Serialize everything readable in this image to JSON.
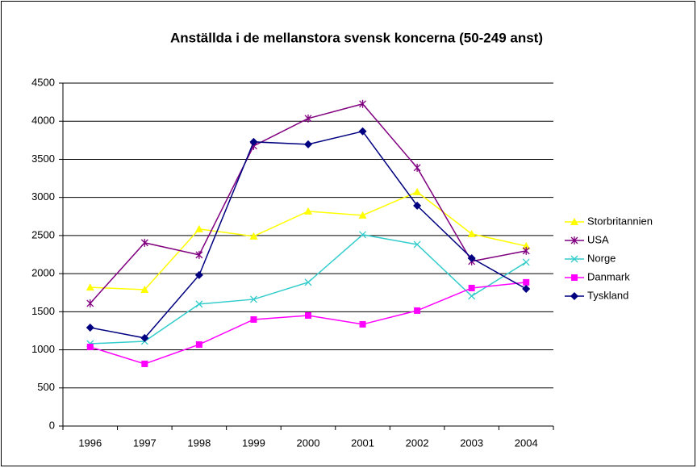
{
  "chart_data": {
    "type": "line",
    "title": "Anställda i de mellanstora svensk koncerna (50-249 anst)",
    "categories": [
      "1996",
      "1997",
      "1998",
      "1999",
      "2000",
      "2001",
      "2002",
      "2003",
      "2004"
    ],
    "series": [
      {
        "name": "Storbritannien",
        "color": "#ffff00",
        "marker": "triangle",
        "values": [
          1820,
          1790,
          2585,
          2490,
          2818,
          2765,
          3072,
          2521,
          2362
        ]
      },
      {
        "name": "USA",
        "color": "#800080",
        "marker": "star",
        "values": [
          1610,
          2405,
          2246,
          3676,
          4036,
          4227,
          3390,
          2161,
          2299
        ]
      },
      {
        "name": "Norge",
        "color": "#33cccc",
        "marker": "x",
        "values": [
          1080,
          1112,
          1600,
          1663,
          1886,
          2511,
          2383,
          1706,
          2150
        ]
      },
      {
        "name": "Danmark",
        "color": "#ff00ff",
        "marker": "square",
        "values": [
          1038,
          816,
          1070,
          1398,
          1451,
          1335,
          1515,
          1811,
          1886
        ]
      },
      {
        "name": "Tyskland",
        "color": "#000080",
        "marker": "diamond",
        "values": [
          1292,
          1155,
          1981,
          3729,
          3697,
          3867,
          2892,
          2203,
          1800
        ]
      }
    ],
    "ylim": [
      0,
      4500
    ],
    "yticks": [
      0,
      500,
      1000,
      1500,
      2000,
      2500,
      3000,
      3500,
      4000,
      4500
    ],
    "grid": true,
    "legend": "right"
  }
}
